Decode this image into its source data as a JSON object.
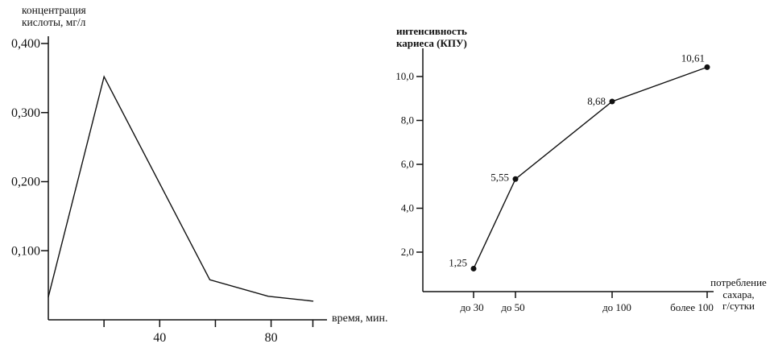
{
  "page": {
    "background": "#ffffff",
    "ink": "#111111"
  },
  "chart_data": [
    {
      "type": "line",
      "title_lines": [
        "концентрация",
        "кислоты, мг/л"
      ],
      "xlabel": "время, мин.",
      "xlim": [
        0,
        100
      ],
      "ylim": [
        0,
        0.42
      ],
      "x": [
        0,
        20,
        58,
        79,
        95
      ],
      "y": [
        0.033,
        0.352,
        0.058,
        0.034,
        0.027
      ],
      "xticks": [
        {
          "v": 20,
          "label": ""
        },
        {
          "v": 40,
          "label": "40"
        },
        {
          "v": 60,
          "label": ""
        },
        {
          "v": 80,
          "label": "80"
        },
        {
          "v": 95,
          "label": ""
        }
      ],
      "yticks": [
        {
          "v": 0.1,
          "label": "0,100"
        },
        {
          "v": 0.2,
          "label": "0,200"
        },
        {
          "v": 0.3,
          "label": "0,300"
        },
        {
          "v": 0.4,
          "label": "0,400"
        }
      ],
      "markers": false,
      "grid": false,
      "legend": null
    },
    {
      "type": "line",
      "title_lines": [
        "интенсивность",
        "кариеса (КПУ)"
      ],
      "xlabel_lines": [
        "потребление",
        "сахара,",
        "г/сутки"
      ],
      "categories": [
        "до 30",
        "до 50",
        "до 100",
        "более 100"
      ],
      "values": [
        1.25,
        5.55,
        8.68,
        10.61
      ],
      "point_labels": [
        "1,25",
        "5,55",
        "8,68",
        "10,61"
      ],
      "ylim": [
        0,
        11.3
      ],
      "yticks": [
        {
          "v": 2,
          "label": "2,0"
        },
        {
          "v": 4,
          "label": "4,0"
        },
        {
          "v": 6,
          "label": "6,0"
        },
        {
          "v": 8,
          "label": "8,0"
        },
        {
          "v": 10,
          "label": "10,0"
        }
      ],
      "markers": true,
      "grid": false,
      "legend": null
    }
  ]
}
